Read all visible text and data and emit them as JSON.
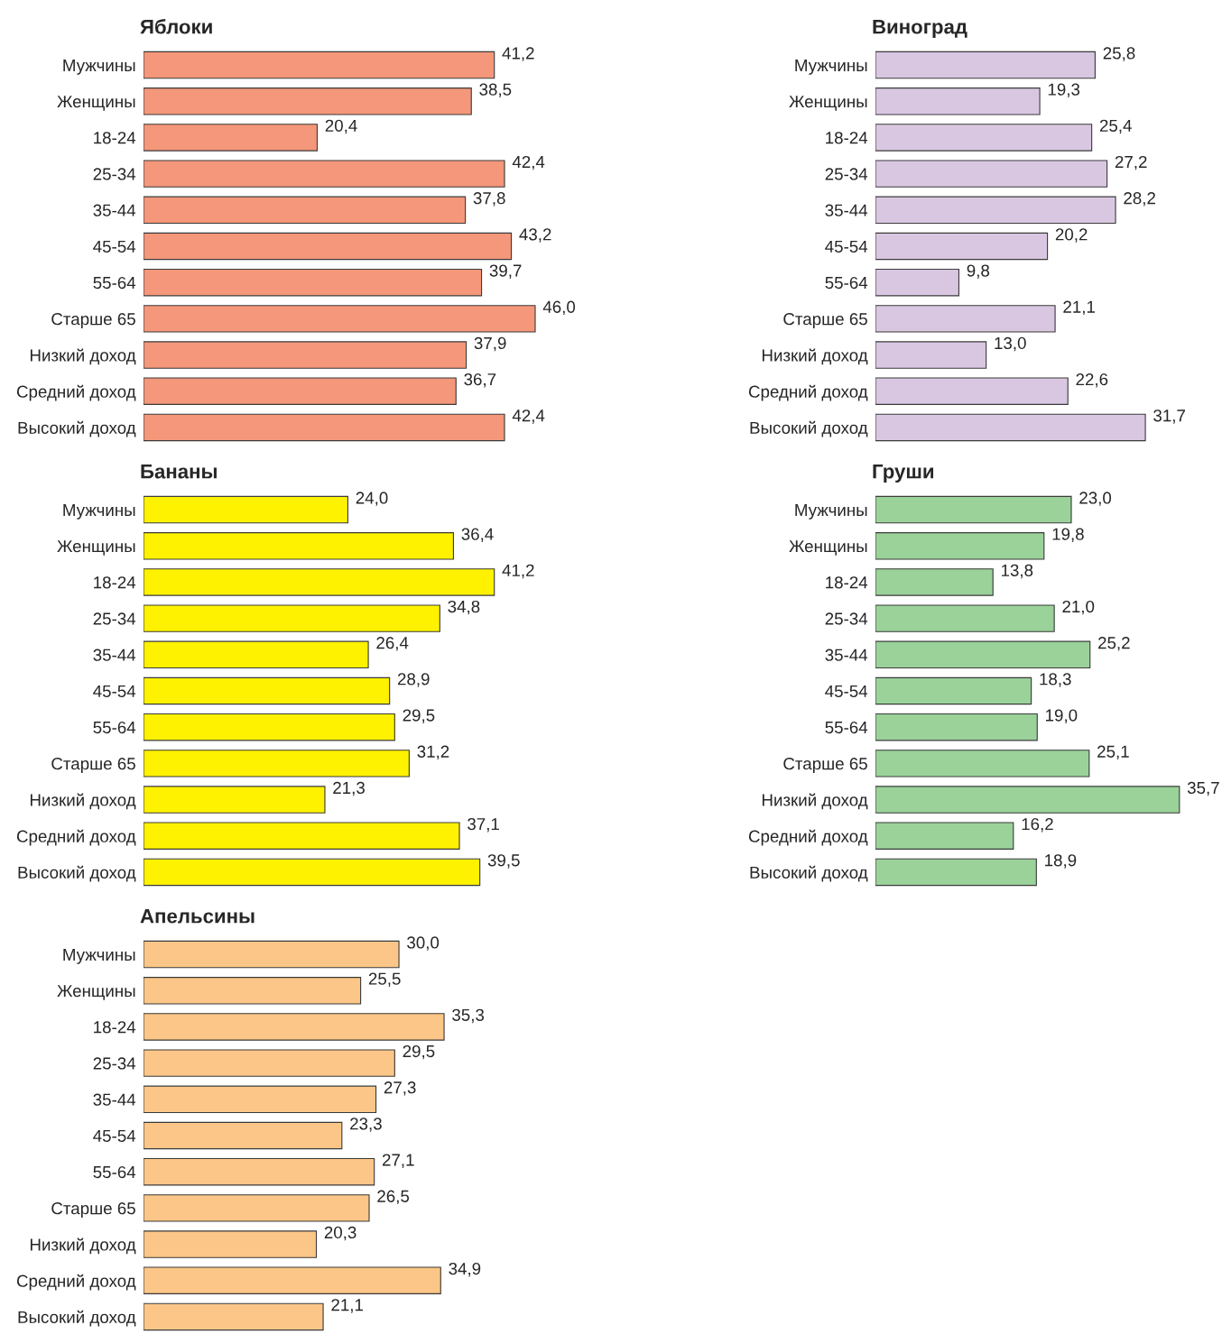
{
  "chart_data": [
    {
      "type": "bar",
      "orientation": "horizontal",
      "title": "Яблоки",
      "categories": [
        "Мужчины",
        "Женщины",
        "18-24",
        "25-34",
        "35-44",
        "45-54",
        "55-64",
        "Старше 65",
        "Низкий доход",
        "Средний доход",
        "Высокий доход"
      ],
      "values": [
        41.2,
        38.5,
        20.4,
        42.4,
        37.8,
        43.2,
        39.7,
        46.0,
        37.9,
        36.7,
        42.4
      ],
      "value_labels": [
        "41,2",
        "38,5",
        "20,4",
        "42,4",
        "37,8",
        "43,2",
        "39,7",
        "46,0",
        "37,9",
        "36,7",
        "42,4"
      ],
      "color": "#f4977a"
    },
    {
      "type": "bar",
      "orientation": "horizontal",
      "title": "Виноград",
      "categories": [
        "Мужчины",
        "Женщины",
        "18-24",
        "25-34",
        "35-44",
        "45-54",
        "55-64",
        "Старше 65",
        "Низкий доход",
        "Средний доход",
        "Высокий доход"
      ],
      "values": [
        25.8,
        19.3,
        25.4,
        27.2,
        28.2,
        20.2,
        9.8,
        21.1,
        13.0,
        22.6,
        31.7
      ],
      "value_labels": [
        "25,8",
        "19,3",
        "25,4",
        "27,2",
        "28,2",
        "20,2",
        "9,8",
        "21,1",
        "13,0",
        "22,6",
        "31,7"
      ],
      "color": "#d9c7e2"
    },
    {
      "type": "bar",
      "orientation": "horizontal",
      "title": "Бананы",
      "categories": [
        "Мужчины",
        "Женщины",
        "18-24",
        "25-34",
        "35-44",
        "45-54",
        "55-64",
        "Старше 65",
        "Низкий доход",
        "Средний доход",
        "Высокий доход"
      ],
      "values": [
        24.0,
        36.4,
        41.2,
        34.8,
        26.4,
        28.9,
        29.5,
        31.2,
        21.3,
        37.1,
        39.5
      ],
      "value_labels": [
        "24,0",
        "36,4",
        "41,2",
        "34,8",
        "26,4",
        "28,9",
        "29,5",
        "31,2",
        "21,3",
        "37,1",
        "39,5"
      ],
      "color": "#fff200"
    },
    {
      "type": "bar",
      "orientation": "horizontal",
      "title": "Груши",
      "categories": [
        "Мужчины",
        "Женщины",
        "18-24",
        "25-34",
        "35-44",
        "45-54",
        "55-64",
        "Старше 65",
        "Низкий доход",
        "Средний доход",
        "Высокий доход"
      ],
      "values": [
        23.0,
        19.8,
        13.8,
        21.0,
        25.2,
        18.3,
        19.0,
        25.1,
        35.7,
        16.2,
        18.9
      ],
      "value_labels": [
        "23,0",
        "19,8",
        "13,8",
        "21,0",
        "25,2",
        "18,3",
        "19,0",
        "25,1",
        "35,7",
        "16,2",
        "18,9"
      ],
      "color": "#9ad29a"
    },
    {
      "type": "bar",
      "orientation": "horizontal",
      "title": "Апельсины",
      "categories": [
        "Мужчины",
        "Женщины",
        "18-24",
        "25-34",
        "35-44",
        "45-54",
        "55-64",
        "Старше 65",
        "Низкий доход",
        "Средний доход",
        "Высокий доход"
      ],
      "values": [
        30.0,
        25.5,
        35.3,
        29.5,
        27.3,
        23.3,
        27.1,
        26.5,
        20.3,
        34.9,
        21.1
      ],
      "value_labels": [
        "30,0",
        "25,5",
        "35,3",
        "29,5",
        "27,3",
        "23,3",
        "27,1",
        "26,5",
        "20,3",
        "34,9",
        "21,1"
      ],
      "color": "#fbc688"
    }
  ]
}
